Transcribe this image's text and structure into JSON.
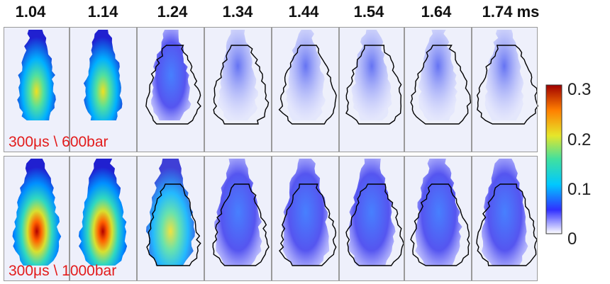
{
  "header": {
    "times": [
      "1.04",
      "1.14",
      "1.24",
      "1.34",
      "1.44",
      "1.54",
      "1.64",
      "1.74 ms"
    ]
  },
  "rows": [
    {
      "label": "300μs \\ 600bar",
      "intensity": 0.85
    },
    {
      "label": "300μs \\ 1000bar",
      "intensity": 1.0
    }
  ],
  "colorbar": {
    "ticks": [
      "0.3",
      "0.2",
      "0.1",
      "0"
    ],
    "colors": [
      "#ffffff",
      "#2c2cff",
      "#00c8ff",
      "#40e0a0",
      "#e6e62a",
      "#ff7f00",
      "#c00000"
    ]
  }
}
